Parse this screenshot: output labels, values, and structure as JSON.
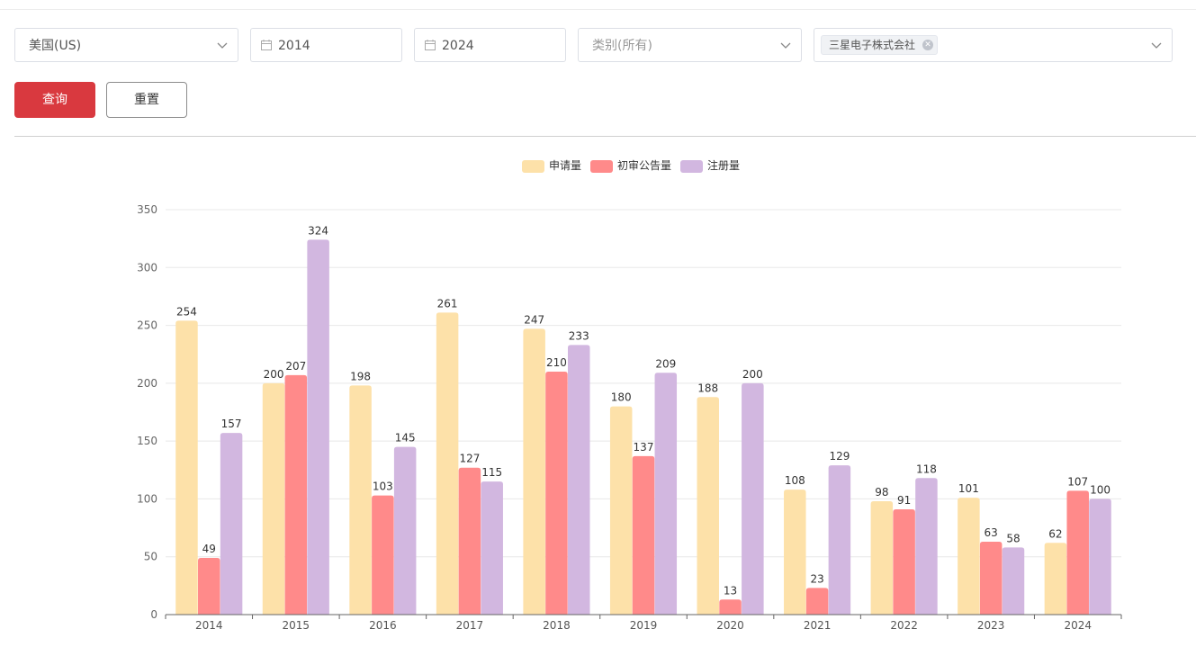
{
  "filters": {
    "country": "美国(US)",
    "start_year": "2014",
    "end_year": "2024",
    "category_placeholder": "类别(所有)",
    "company_tag": "三星电子株式会社"
  },
  "buttons": {
    "query": "查询",
    "reset": "重置"
  },
  "colors": {
    "series1": "#fde1a9",
    "series2": "#ff8a8a",
    "series3": "#d2b7e0",
    "primary": "#d9393f"
  },
  "chart_data": {
    "type": "bar",
    "categories": [
      "2014",
      "2015",
      "2016",
      "2017",
      "2018",
      "2019",
      "2020",
      "2021",
      "2022",
      "2023",
      "2024"
    ],
    "series": [
      {
        "name": "申请量",
        "values": [
          254,
          200,
          198,
          261,
          247,
          180,
          188,
          108,
          98,
          101,
          62
        ]
      },
      {
        "name": "初审公告量",
        "values": [
          49,
          207,
          103,
          127,
          210,
          137,
          13,
          23,
          91,
          63,
          107
        ]
      },
      {
        "name": "注册量",
        "values": [
          157,
          324,
          145,
          115,
          233,
          209,
          200,
          129,
          118,
          58,
          100
        ]
      }
    ],
    "ylim": [
      0,
      350
    ],
    "yticks": [
      0,
      50,
      100,
      150,
      200,
      250,
      300,
      350
    ],
    "legend": "top-center",
    "grid": true
  }
}
